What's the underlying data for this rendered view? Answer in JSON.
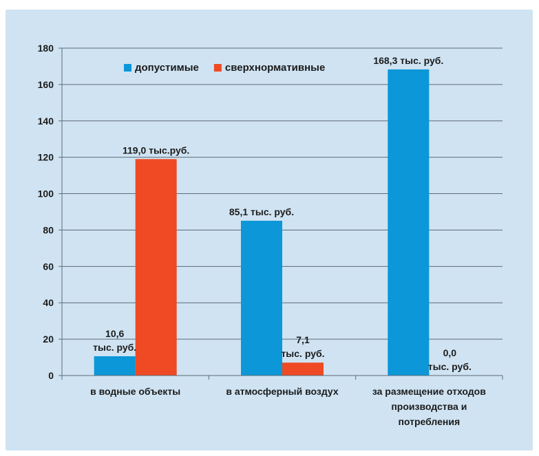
{
  "chart_data": {
    "type": "bar",
    "categories": [
      [
        "в водные объекты"
      ],
      [
        "в атмосферный воздух"
      ],
      [
        "за размещение отходов",
        "производства и",
        "потребления"
      ]
    ],
    "series": [
      {
        "name": "допустимые",
        "color": "#0b97d8",
        "values": [
          10.6,
          85.1,
          168.3
        ],
        "labels": [
          [
            "10,6",
            "тыс. руб."
          ],
          [
            "85,1 тыс. руб."
          ],
          [
            "168,3 тыс. руб."
          ]
        ]
      },
      {
        "name": "сверхнормативные",
        "color": "#ef4a23",
        "values": [
          119.0,
          7.1,
          0.0
        ],
        "labels": [
          [
            "119,0 тыс.руб."
          ],
          [
            "7,1",
            "тыс. руб."
          ],
          [
            "0,0",
            "тыс. руб."
          ]
        ]
      }
    ],
    "ylim": [
      0,
      180
    ],
    "yticks": [
      0,
      20,
      40,
      60,
      80,
      100,
      120,
      140,
      160,
      180
    ],
    "grid": true,
    "legend": "top-center"
  }
}
